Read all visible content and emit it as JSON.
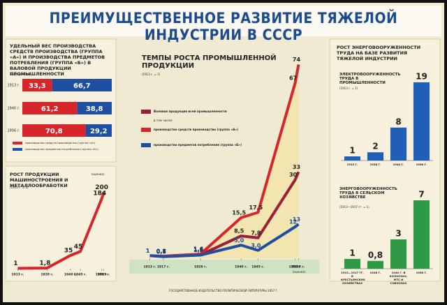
{
  "poster": {
    "title": "ПРЕИМУЩЕСТВЕННОЕ РАЗВИТИЕ ТЯЖЕЛОЙ ИНДУСТРИИ В СССР",
    "right_title": "Рост энерговооруженности труда на базе развития тяжелой индустрии",
    "footer": "Государственное издательство политической литературы 1957 г."
  },
  "chart_data": [
    {
      "type": "stacked-hbar",
      "title": "Удельный вес производства средств производства (группа «А») и производства предметов потребления (группа «Б») в валовой продукции промышленности",
      "subtitle": "(в процентах)",
      "categories": [
        "1913 г.",
        "1940 г.",
        "1956 г."
      ],
      "xlim": [
        0,
        100
      ],
      "series": [
        {
          "name": "производство средств производства (группа «А»)",
          "color": "#d7262b",
          "values": [
            33.3,
            61.2,
            70.8
          ],
          "value_labels": [
            "33,3",
            "61,2",
            "70,8"
          ]
        },
        {
          "name": "производство предметов потребления (группа «Б»)",
          "color": "#1f4fa3",
          "values": [
            66.7,
            38.8,
            29.2
          ],
          "value_labels": [
            "66,7",
            "38,8",
            "29,2"
          ]
        }
      ]
    },
    {
      "type": "line",
      "title": "Рост продукции машиностроения и металлообработки",
      "subtitle": "(1913 г. = 1)",
      "x": [
        1913,
        1928,
        1940,
        1945,
        1956,
        1957
      ],
      "xlim": [
        1910,
        1960
      ],
      "xticks": [
        {
          "value": 1913,
          "label": "1913 г."
        },
        {
          "value": 1928,
          "label": "1928 г."
        },
        {
          "value": 1940,
          "label": "1940 г."
        },
        {
          "value": 1945,
          "label": "1945 г."
        },
        {
          "value": 1956,
          "label": "1956 г."
        },
        {
          "value": 1957,
          "label": "1957 г."
        }
      ],
      "ylim": [
        0,
        210
      ],
      "annotation": "(оценка)",
      "series": [
        {
          "color": "#d7262b",
          "values": [
            1,
            1.8,
            35,
            45,
            184,
            200
          ],
          "value_labels": [
            "1",
            "1,8",
            "35",
            "45",
            "184",
            "200"
          ]
        }
      ]
    },
    {
      "type": "line",
      "title": "Темпы роста промышленной продукции",
      "subtitle": "(1913 г. = 1)",
      "legend_note": "в том числе:",
      "annotation": "(оценка)",
      "x": [
        1913,
        1917,
        1928,
        1940,
        1945,
        1956,
        1957
      ],
      "xlim": [
        1910,
        1960
      ],
      "xticks": [
        {
          "value": 1913,
          "label": "1913 г."
        },
        {
          "value": 1917,
          "label": "1917 г."
        },
        {
          "value": 1928,
          "label": "1928 г."
        },
        {
          "value": 1940,
          "label": "1940 г."
        },
        {
          "value": 1945,
          "label": "1945 г."
        },
        {
          "value": 1956,
          "label": "1956 г."
        },
        {
          "value": 1957,
          "label": "1957 г."
        }
      ],
      "ylim": [
        0,
        80
      ],
      "series": [
        {
          "name": "Валовая продукция всей промышленности",
          "color": "#9c1f3a",
          "values": [
            1,
            0.7,
            1.3,
            8.5,
            7.8,
            30,
            33
          ],
          "value_labels": [
            "1",
            "0,7",
            "1,3",
            "8,5",
            "7,8",
            "30",
            "33"
          ]
        },
        {
          "name": "производство средств производства (группа «А»)",
          "color": "#d7262b",
          "area_color": "#f3e4a6",
          "values": [
            1,
            0.8,
            1.6,
            15.5,
            17.5,
            67,
            74
          ],
          "value_labels": [
            "1",
            "0,8",
            "1,6",
            "15,5",
            "17,5",
            "67",
            "74"
          ]
        },
        {
          "name": "производство предметов потребления (группа «Б»)",
          "color": "#1f4fa3",
          "values": [
            1,
            0.6,
            1.2,
            5.0,
            3.0,
            12,
            13
          ],
          "value_labels": [
            "1",
            "0,6",
            "1,2",
            "5,0",
            "3,0",
            "12",
            "13"
          ]
        }
      ]
    },
    {
      "type": "bar",
      "title": "Электровооруженность труда в промышленности",
      "subtitle": "(1913 г. = 1)",
      "categories": [
        "1913 г.",
        "1928 г.",
        "1940 г.",
        "1956 г."
      ],
      "values": [
        1,
        2,
        8,
        19
      ],
      "color": "#1f5fb8",
      "ylim": [
        0,
        20
      ]
    },
    {
      "type": "bar",
      "title": "Энерговооруженность труда в сельском хозяйстве",
      "subtitle": "(1913—1917 гг. = 1)",
      "categories": [
        "1913—1917 гг. в крестьянских хозяйствах",
        "1928 г.",
        "1940 г. в колхозах, МТС и совхозах",
        "1956 г."
      ],
      "values": [
        1,
        0.8,
        3,
        7
      ],
      "value_labels": [
        "1",
        "0,8",
        "3",
        "7"
      ],
      "color": "#2f9a45",
      "ylim": [
        0,
        8
      ]
    }
  ]
}
